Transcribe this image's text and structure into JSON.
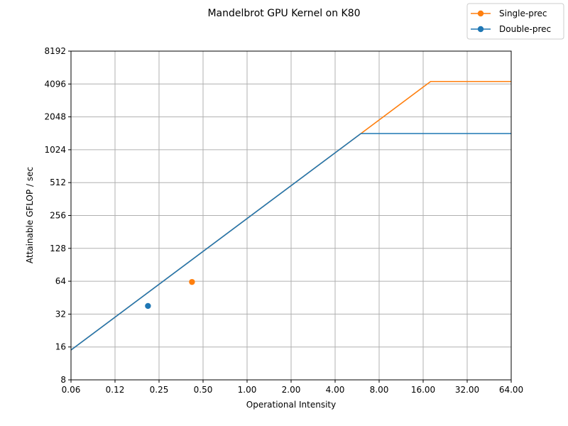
{
  "chart_data": {
    "type": "line",
    "title": "Mandelbrot GPU Kernel on K80",
    "xlabel": "Operational Intensity",
    "ylabel": "Attainable GFLOP / sec",
    "x_scale": "log2",
    "y_scale": "log2",
    "xlim": [
      0.0625,
      64
    ],
    "ylim": [
      8,
      8192
    ],
    "x_ticks": [
      0.0625,
      0.125,
      0.25,
      0.5,
      1,
      2,
      4,
      8,
      16,
      32,
      64
    ],
    "x_tick_labels": [
      "0.06",
      "0.12",
      "0.25",
      "0.50",
      "1.00",
      "2.00",
      "4.00",
      "8.00",
      "16.00",
      "32.00",
      "64.00"
    ],
    "y_ticks": [
      8,
      16,
      32,
      64,
      128,
      256,
      512,
      1024,
      2048,
      4096,
      8192
    ],
    "y_tick_labels": [
      "8",
      "16",
      "32",
      "64",
      "128",
      "256",
      "512",
      "1024",
      "2048",
      "4096",
      "8192"
    ],
    "grid": true,
    "legend_position": "top-right",
    "series": [
      {
        "name": "Single-prec",
        "color": "#ff7f0e",
        "roofline": [
          [
            0.0625,
            15
          ],
          [
            18,
            4320
          ],
          [
            64,
            4320
          ]
        ],
        "points": [
          [
            0.42,
            63
          ]
        ]
      },
      {
        "name": "Double-prec",
        "color": "#1f77b4",
        "roofline": [
          [
            0.0625,
            15
          ],
          [
            6,
            1440
          ],
          [
            64,
            1440
          ]
        ],
        "points": [
          [
            0.21,
            38
          ]
        ]
      }
    ]
  }
}
